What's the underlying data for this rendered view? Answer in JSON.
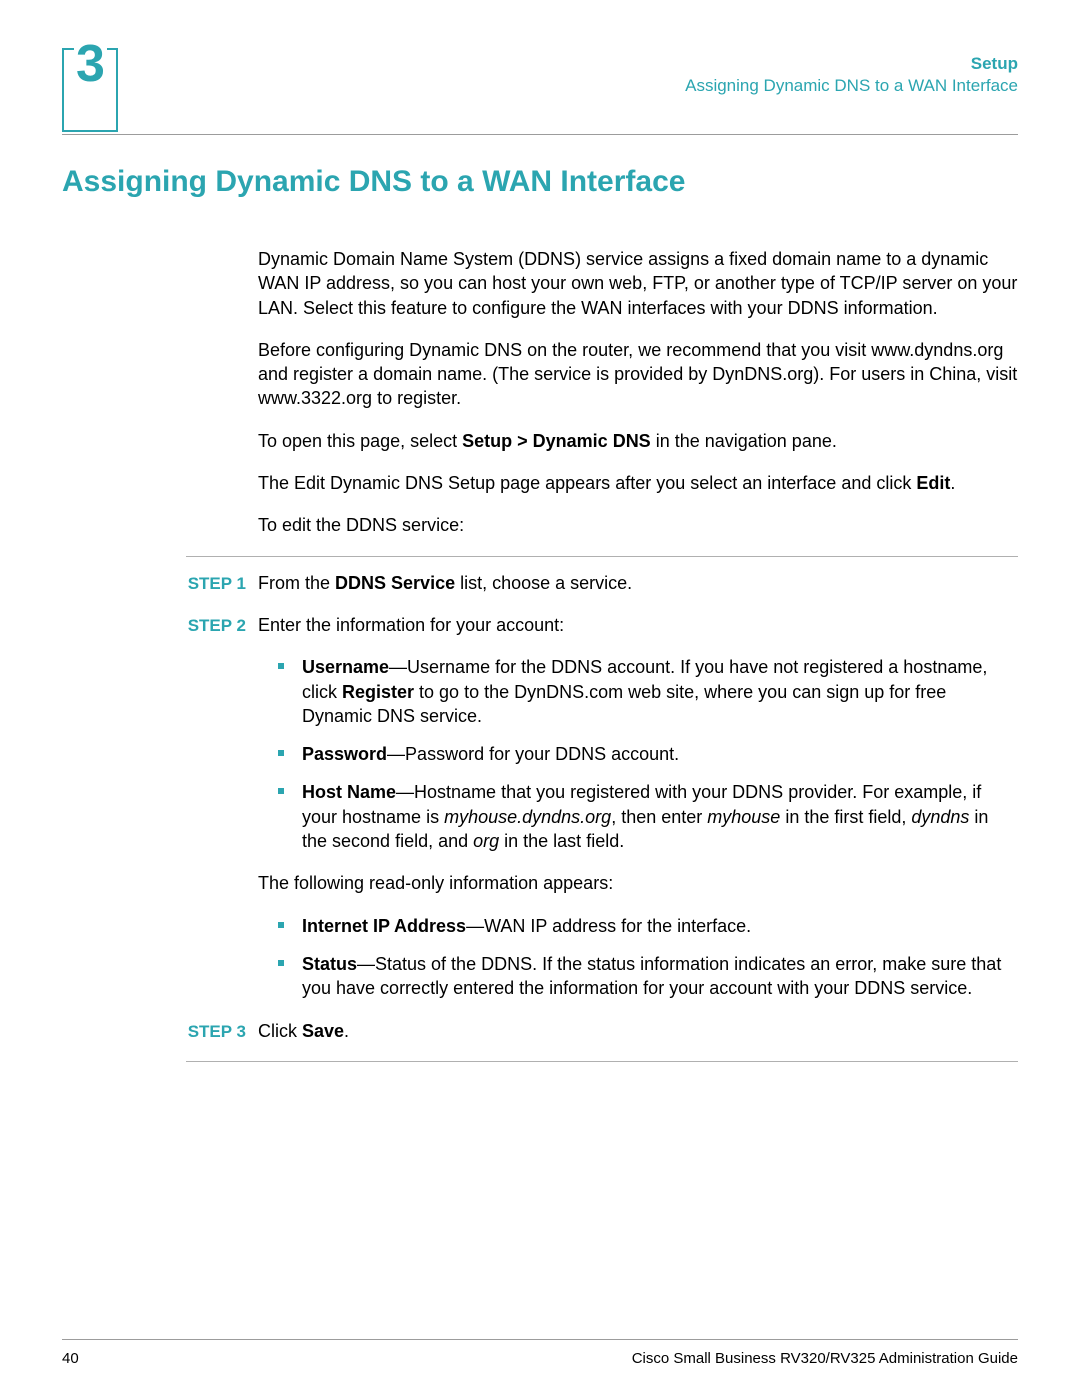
{
  "colors": {
    "accent": "#2ba5b0",
    "text": "#000000",
    "rule": "#9c9c9c",
    "rule_light": "#b0b0b0",
    "background": "#ffffff"
  },
  "typography": {
    "body_fontsize": 18,
    "title_fontsize": 30,
    "header_fontsize": 17,
    "footer_fontsize": 15,
    "chapter_num_fontsize": 52
  },
  "chapter_number": "3",
  "header": {
    "setup": "Setup",
    "subtitle": "Assigning Dynamic DNS to a WAN Interface"
  },
  "section_title": "Assigning Dynamic DNS to a WAN Interface",
  "para1": "Dynamic Domain Name System (DDNS) service assigns a fixed domain name to a dynamic WAN IP address, so you can host your own web, FTP, or another type of TCP/IP server on your LAN. Select this feature to configure the WAN interfaces with your DDNS information.",
  "para2": "Before configuring Dynamic DNS on the router, we recommend that you visit www.dyndns.org and register a domain name. (The service is provided by DynDNS.org). For users in China, visit www.3322.org to register.",
  "para3_pre": "To open this page, select ",
  "para3_bold": "Setup > Dynamic DNS",
  "para3_post": " in the navigation pane.",
  "para4_pre": "The Edit Dynamic DNS Setup page appears after you select an interface and click ",
  "para4_bold": "Edit",
  "para4_post": ".",
  "para5": "To edit the DDNS service:",
  "step_label_prefix": "STEP ",
  "steps": {
    "s1": {
      "num": "1",
      "pre": "From the ",
      "bold": "DDNS Service",
      "post": " list, choose a service."
    },
    "s2": {
      "num": "2",
      "text": "Enter the information for your account:"
    },
    "s3": {
      "num": "3",
      "pre": "Click ",
      "bold": "Save",
      "post": "."
    }
  },
  "bullets1": {
    "b1": {
      "bold": "Username",
      "pre": "—Username for the DDNS account. If you have not registered a hostname, click ",
      "bold2": "Register",
      "post": " to go to the DynDNS.com web site, where you can sign up for free Dynamic DNS service."
    },
    "b2": {
      "bold": "Password",
      "post": "—Password for your DDNS account."
    },
    "b3": {
      "bold": "Host Name",
      "pre": "—Hostname that you registered with your DDNS provider. For example, if your hostname is ",
      "it1": "myhouse.dyndns.org",
      "mid1": ", then enter ",
      "it2": "myhouse",
      "mid2": " in the first field, ",
      "it3": "dyndns",
      "mid3": " in the second field, and ",
      "it4": "org",
      "post": " in the last field."
    }
  },
  "para_readonly": "The following read-only information appears:",
  "bullets2": {
    "b1": {
      "bold": "Internet IP Address",
      "post": "—WAN IP address for the interface."
    },
    "b2": {
      "bold": "Status",
      "post": "—Status of the DDNS. If the status information indicates an error, make sure that you have correctly entered the information for your account with your DDNS service."
    }
  },
  "footer": {
    "page": "40",
    "guide": "Cisco Small Business RV320/RV325 Administration Guide"
  }
}
